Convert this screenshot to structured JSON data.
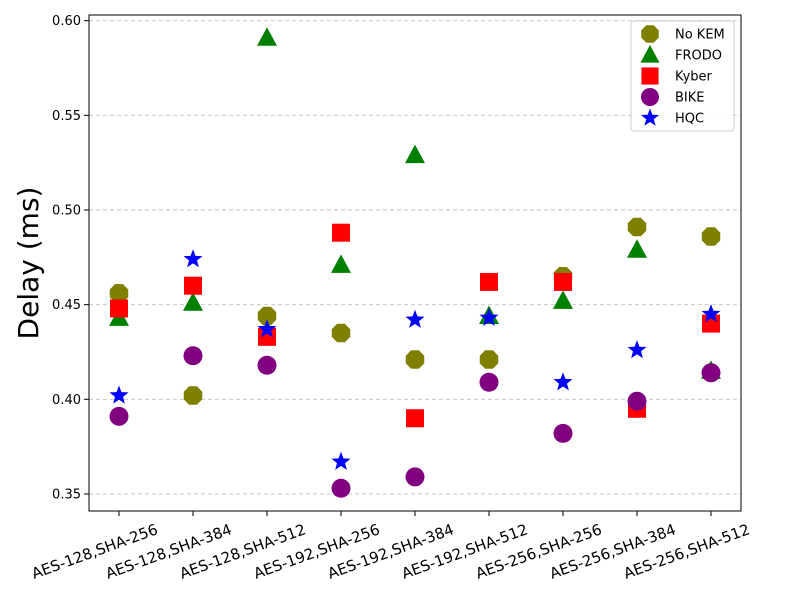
{
  "chart_data": {
    "type": "scatter",
    "title": "",
    "xlabel": "",
    "ylabel": "Delay (ms)",
    "ylim": [
      0.341,
      0.603
    ],
    "yticks": [
      "0.35",
      "0.40",
      "0.45",
      "0.50",
      "0.55",
      "0.60"
    ],
    "grid": "y-dashed",
    "legend_position": "top-right",
    "categories": [
      "AES-128,SHA-256",
      "AES-128,SHA-384",
      "AES-128,SHA-512",
      "AES-192,SHA-256",
      "AES-192,SHA-384",
      "AES-192,SHA-512",
      "AES-256,SHA-256",
      "AES-256,SHA-384",
      "AES-256,SHA-512"
    ],
    "series": [
      {
        "name": "No KEM",
        "marker": "octagon",
        "color": "#808000",
        "values": [
          0.456,
          0.402,
          0.444,
          0.435,
          0.421,
          0.421,
          0.465,
          0.491,
          0.486
        ]
      },
      {
        "name": "FRODO",
        "marker": "triangle",
        "color": "#008000",
        "values": [
          0.443,
          0.451,
          0.591,
          0.471,
          0.529,
          0.444,
          0.452,
          0.479,
          0.415
        ]
      },
      {
        "name": "Kyber",
        "marker": "square",
        "color": "#ff0000",
        "values": [
          0.448,
          0.46,
          0.433,
          0.488,
          0.39,
          0.462,
          0.462,
          0.395,
          0.44
        ]
      },
      {
        "name": "BIKE",
        "marker": "circle",
        "color": "#800080",
        "values": [
          0.391,
          0.423,
          0.418,
          0.353,
          0.359,
          0.409,
          0.382,
          0.399,
          0.414
        ]
      },
      {
        "name": "HQC",
        "marker": "star",
        "color": "#0000ff",
        "values": [
          0.402,
          0.474,
          0.437,
          0.367,
          0.442,
          0.443,
          0.409,
          0.426,
          0.445
        ]
      }
    ]
  }
}
